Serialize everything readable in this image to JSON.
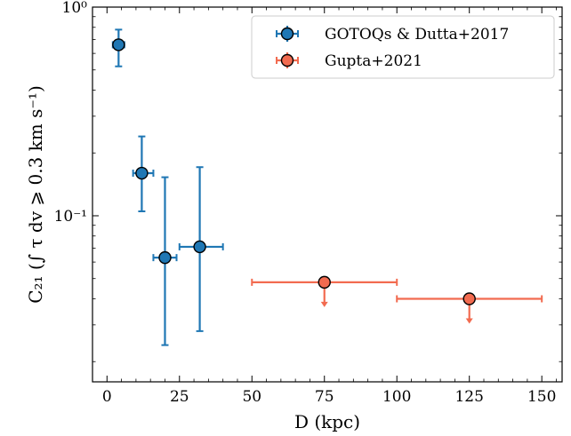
{
  "chart_data": {
    "type": "scatter",
    "xlabel": "D (kpc)",
    "ylabel": "C₂₁ (∫ τ dv ⩾ 0.3 km s⁻¹)",
    "xlim": [
      -5,
      157
    ],
    "ylim": [
      0.016,
      1.0
    ],
    "yscale": "log",
    "x_ticks": [
      0,
      25,
      50,
      75,
      100,
      125,
      150
    ],
    "x_tick_labels": [
      "0",
      "25",
      "50",
      "75",
      "100",
      "125",
      "150"
    ],
    "y_major_ticks": [
      0.1,
      1.0
    ],
    "y_tick_labels": [
      "10⁻¹",
      "10⁰"
    ],
    "grid": false,
    "legend_position": "top-right",
    "series": [
      {
        "name": "GOTOQs & Dutta+2017",
        "color": "#1f77b4",
        "points": [
          {
            "x": 4,
            "x_lo": 2,
            "x_hi": 6,
            "y": 0.66,
            "y_lo": 0.52,
            "y_hi": 0.78,
            "upper_limit": false
          },
          {
            "x": 12,
            "x_lo": 9,
            "x_hi": 16,
            "y": 0.16,
            "y_lo": 0.105,
            "y_hi": 0.24,
            "upper_limit": false
          },
          {
            "x": 20,
            "x_lo": 16,
            "x_hi": 24,
            "y": 0.063,
            "y_lo": 0.024,
            "y_hi": 0.153,
            "upper_limit": false
          },
          {
            "x": 32,
            "x_lo": 25,
            "x_hi": 40,
            "y": 0.071,
            "y_lo": 0.028,
            "y_hi": 0.171,
            "upper_limit": false
          }
        ]
      },
      {
        "name": "Gupta+2021",
        "color": "#f26b50",
        "points": [
          {
            "x": 75,
            "x_lo": 50,
            "x_hi": 100,
            "y": 0.048,
            "upper_limit": true
          },
          {
            "x": 125,
            "x_lo": 100,
            "x_hi": 150,
            "y": 0.04,
            "upper_limit": true
          }
        ]
      }
    ]
  }
}
